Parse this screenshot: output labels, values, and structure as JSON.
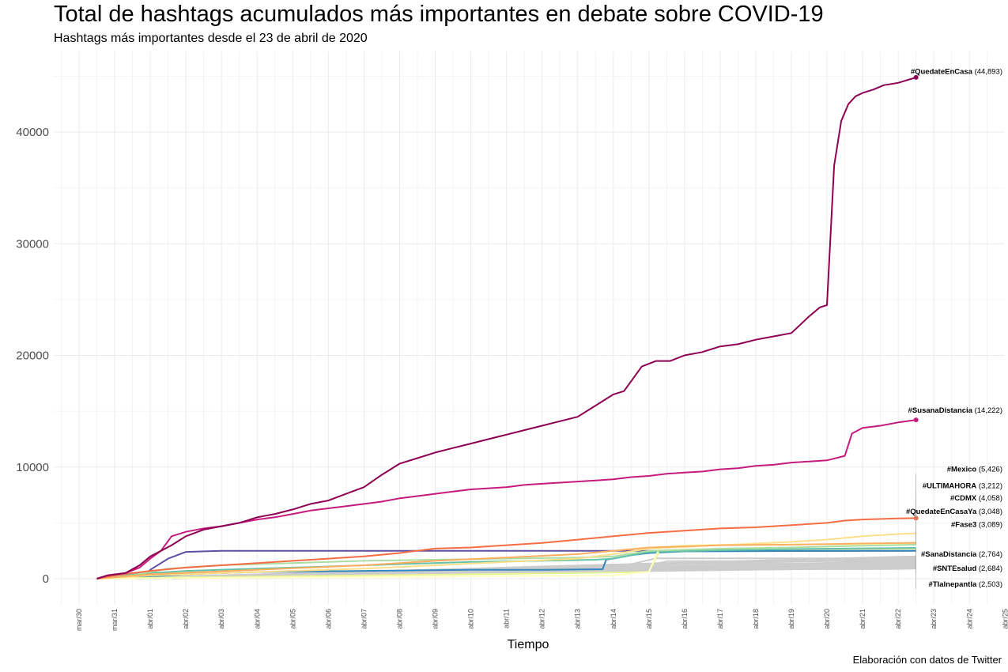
{
  "chart_data": {
    "type": "line",
    "title": "Total de hashtags acumulados más importantes en debate sobre COVID-19",
    "subtitle": "Hashtags más importantes desde el 23 de abril de 2020",
    "caption": "Elaboración con datos de Twitter",
    "xlabel": "Tiempo",
    "ylabel": "",
    "x_ticks": [
      "mar/30",
      "mar/31",
      "abr/01",
      "abr/02",
      "abr/03",
      "abr/04",
      "abr/05",
      "abr/06",
      "abr/07",
      "abr/08",
      "abr/09",
      "abr/10",
      "abr/11",
      "abr/12",
      "abr/13",
      "abr/14",
      "abr/15",
      "abr/16",
      "abr/17",
      "abr/18",
      "abr/19",
      "abr/20",
      "abr/21",
      "abr/22",
      "abr/23",
      "abr/24",
      "abr/25"
    ],
    "y_ticks": [
      0,
      10000,
      20000,
      30000,
      40000
    ],
    "xlim": [
      -0.6,
      26
    ],
    "ylim": [
      -2200,
      47500
    ],
    "grid": true,
    "legend": "none",
    "series": [
      {
        "name": "#QuedateEnCasa",
        "value_label": "(44,893)",
        "color": "#8E0152",
        "label_y": 45200,
        "dot": true,
        "x": [
          0.5,
          0.8,
          1.3,
          1.7,
          2.0,
          2.3,
          2.6,
          3.0,
          3.5,
          4.0,
          4.5,
          5.0,
          5.5,
          6.0,
          6.5,
          7.0,
          7.5,
          8.0,
          8.5,
          9.0,
          9.5,
          10.0,
          10.5,
          11.0,
          11.5,
          12.0,
          12.5,
          13.0,
          13.5,
          14.0,
          14.5,
          15.0,
          15.3,
          15.8,
          16.2,
          16.6,
          17.0,
          17.5,
          18.0,
          18.5,
          19.0,
          19.5,
          20.0,
          20.5,
          20.8,
          21.0,
          21.2,
          21.4,
          21.6,
          21.8,
          22.0,
          22.3,
          22.6,
          23.0,
          23.5
        ],
        "y": [
          0,
          300,
          500,
          1200,
          2000,
          2500,
          3000,
          3800,
          4400,
          4700,
          5000,
          5500,
          5800,
          6200,
          6700,
          7000,
          7600,
          8200,
          9300,
          10300,
          10800,
          11300,
          11700,
          12100,
          12500,
          12900,
          13300,
          13700,
          14100,
          14500,
          15500,
          16500,
          16800,
          19000,
          19500,
          19500,
          20000,
          20300,
          20800,
          21000,
          21400,
          21700,
          22000,
          23500,
          24300,
          24500,
          37000,
          41000,
          42500,
          43200,
          43500,
          43800,
          44200,
          44400,
          44893
        ]
      },
      {
        "name": "#SusanaDistancia",
        "value_label": "(14,222)",
        "color": "#C51B7D",
        "label_y": 14850,
        "dot": true,
        "x": [
          0.5,
          0.8,
          1.3,
          1.7,
          2.0,
          2.3,
          2.6,
          3.0,
          3.5,
          4.0,
          4.5,
          5.0,
          5.5,
          6.0,
          6.5,
          7.0,
          7.5,
          8.0,
          8.5,
          9.0,
          9.5,
          10.0,
          10.5,
          11.0,
          11.5,
          12.0,
          12.5,
          13.0,
          13.5,
          14.0,
          14.5,
          15.0,
          15.5,
          16.0,
          16.5,
          17.0,
          17.5,
          18.0,
          18.5,
          19.0,
          19.5,
          20.0,
          20.5,
          21.0,
          21.5,
          21.7,
          22.0,
          22.5,
          23.0,
          23.5
        ],
        "y": [
          0,
          300,
          500,
          1000,
          1800,
          2500,
          3800,
          4200,
          4500,
          4700,
          5000,
          5300,
          5500,
          5800,
          6100,
          6300,
          6500,
          6700,
          6900,
          7200,
          7400,
          7600,
          7800,
          8000,
          8100,
          8200,
          8400,
          8500,
          8600,
          8700,
          8800,
          8900,
          9100,
          9200,
          9400,
          9500,
          9600,
          9800,
          9900,
          10100,
          10200,
          10400,
          10500,
          10600,
          11000,
          13000,
          13500,
          13700,
          14000,
          14222
        ]
      },
      {
        "name": "#Mexico",
        "value_label": "(5,426)",
        "color": "#F46D43",
        "label_y": 9600,
        "dot": true,
        "x": [
          0.5,
          1.0,
          2.0,
          3.0,
          4.0,
          5.0,
          6.0,
          7.0,
          8.0,
          9.0,
          10.0,
          11.0,
          12.0,
          13.0,
          14.0,
          15.0,
          16.0,
          17.0,
          18.0,
          19.0,
          20.0,
          21.0,
          21.5,
          22.0,
          23.0,
          23.5
        ],
        "y": [
          0,
          300,
          700,
          1000,
          1200,
          1400,
          1600,
          1800,
          2000,
          2300,
          2700,
          2800,
          3000,
          3200,
          3500,
          3800,
          4100,
          4300,
          4500,
          4600,
          4800,
          5000,
          5200,
          5300,
          5400,
          5426
        ]
      },
      {
        "name": "#ULTIMAHORA",
        "value_label": "(3,212)",
        "color": "#FDAE61",
        "label_y": 8100,
        "dot": false,
        "x": [
          0.5,
          2.0,
          5.0,
          8.0,
          10.0,
          12.0,
          14.0,
          15.0,
          16.0,
          18.0,
          20.0,
          21.0,
          22.0,
          23.5
        ],
        "y": [
          0,
          400,
          800,
          1200,
          1600,
          1900,
          2200,
          2500,
          2800,
          3000,
          3050,
          3100,
          3150,
          3212
        ]
      },
      {
        "name": "#CDMX",
        "value_label": "(4,058)",
        "color": "#FEE08B",
        "label_y": 7000,
        "dot": false,
        "x": [
          0.5,
          2.0,
          5.0,
          8.0,
          10.0,
          12.0,
          14.0,
          15.0,
          16.0,
          18.0,
          20.0,
          21.0,
          22.0,
          23.0,
          23.5
        ],
        "y": [
          0,
          300,
          600,
          900,
          1200,
          1500,
          1800,
          2200,
          2700,
          3000,
          3300,
          3500,
          3800,
          4000,
          4058
        ]
      },
      {
        "name": "#QuedateEnCasaYa",
        "value_label": "(3,048)",
        "color": "#ABDDA4",
        "label_y": 5800,
        "dot": false,
        "x": [
          0.5,
          1.5,
          2.5,
          4.0,
          6.0,
          8.0,
          10.0,
          12.0,
          14.0,
          15.0,
          16.0,
          18.0,
          20.0,
          22.0,
          23.5
        ],
        "y": [
          0,
          300,
          900,
          1200,
          1400,
          1600,
          1700,
          1800,
          1900,
          2000,
          2500,
          2700,
          2800,
          2950,
          3048
        ]
      },
      {
        "name": "#Fase3",
        "value_label": "(3,089)",
        "color": "#FFFFBF",
        "label_y": 4650,
        "dot": false,
        "x": [
          0.5,
          5.0,
          10.0,
          15.0,
          15.6,
          16.0,
          16.3,
          17.0,
          18.0,
          20.0,
          22.0,
          23.5
        ],
        "y": [
          0,
          100,
          200,
          300,
          500,
          600,
          2800,
          3000,
          3050,
          3070,
          3080,
          3089
        ]
      },
      {
        "name": "#SanaDistancia",
        "value_label": "(2,764)",
        "color": "#66C2A5",
        "label_y": 2000,
        "dot": false,
        "x": [
          0.5,
          1.5,
          3.0,
          5.0,
          7.0,
          9.0,
          11.0,
          13.0,
          14.5,
          15.0,
          16.0,
          18.0,
          20.0,
          22.0,
          23.5
        ],
        "y": [
          0,
          400,
          700,
          900,
          1100,
          1300,
          1500,
          1600,
          1700,
          1800,
          2400,
          2550,
          2650,
          2720,
          2764
        ]
      },
      {
        "name": "#SNTEsalud",
        "value_label": "(2,684)",
        "color": "#E6F598",
        "label_y": 700,
        "dot": false,
        "x": [
          0.5,
          2.0,
          5.0,
          8.0,
          11.0,
          14.0,
          16.0,
          16.3,
          17.0,
          20.0,
          22.0,
          23.5
        ],
        "y": [
          0,
          100,
          200,
          300,
          400,
          500,
          600,
          2500,
          2600,
          2650,
          2670,
          2684
        ]
      },
      {
        "name": "#Tlalnepantla",
        "value_label": "(2,503)",
        "color": "#3288BD",
        "label_y": -700,
        "dot": false,
        "x": [
          1.0,
          3.0,
          5.0,
          8.0,
          11.0,
          13.0,
          14.7,
          14.8,
          15.5,
          16.0,
          17.0,
          20.0,
          22.0,
          23.5
        ],
        "y": [
          0,
          400,
          600,
          700,
          800,
          800,
          850,
          1700,
          2100,
          2300,
          2450,
          2480,
          2495,
          2503
        ]
      },
      {
        "name": "",
        "value_label": "",
        "color": "#5E4FA2",
        "label_y": null,
        "dot": false,
        "x": [
          1.8,
          2.0,
          2.5,
          3.0,
          4.0,
          10.0,
          15.0,
          20.0,
          23.5
        ],
        "y": [
          0,
          800,
          1800,
          2400,
          2500,
          2500,
          2500,
          2500,
          2500
        ]
      }
    ],
    "background_series_color": "#cccccc"
  }
}
